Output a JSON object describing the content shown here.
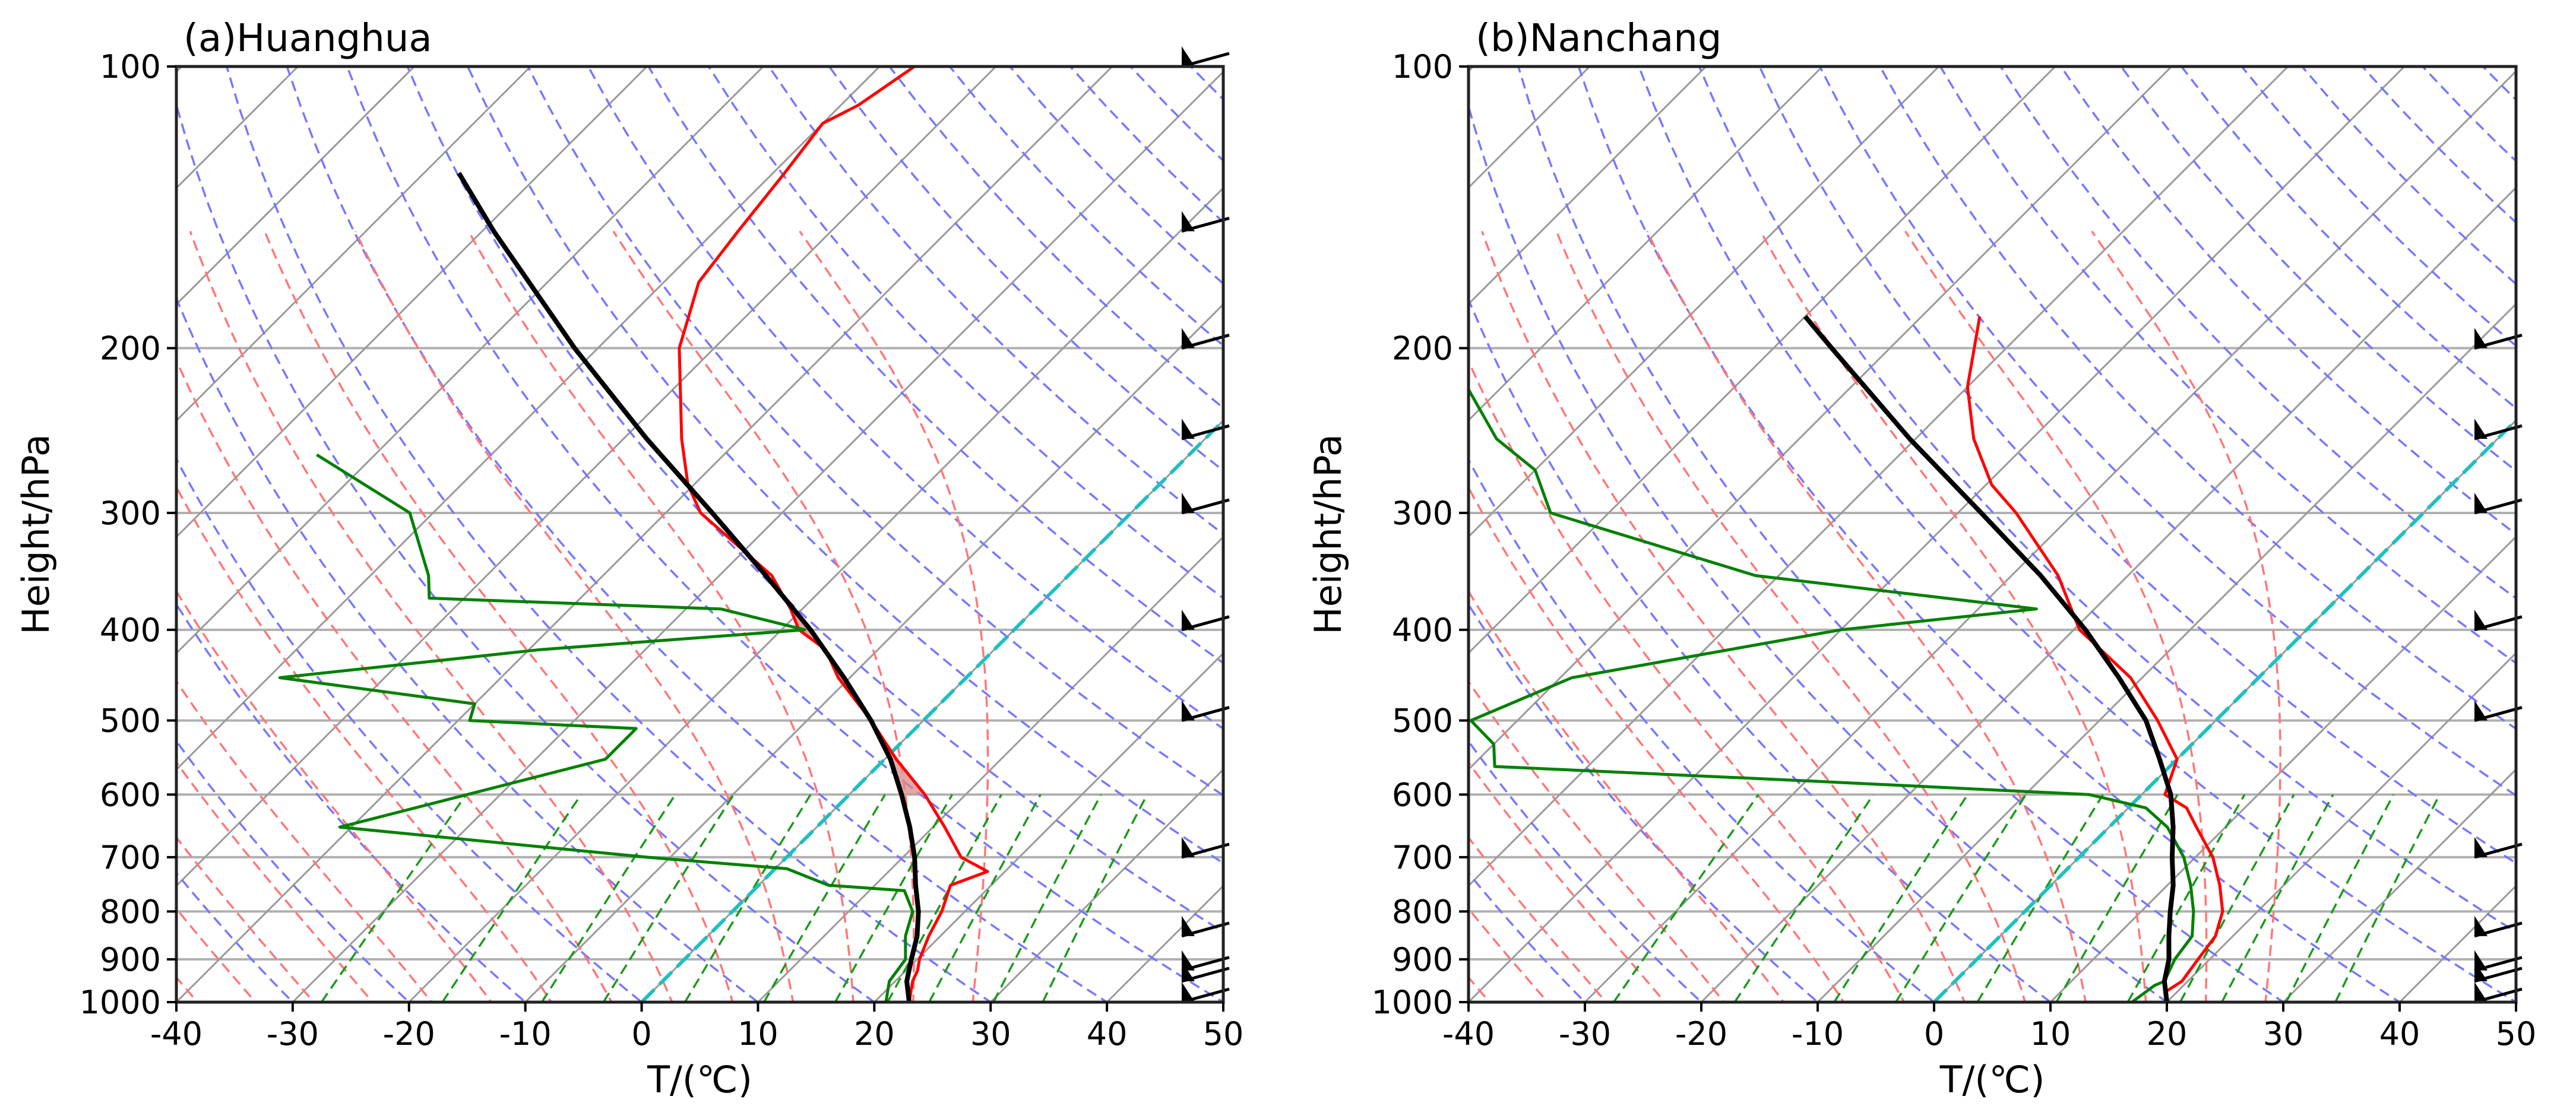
{
  "chart_data": [
    {
      "type": "line",
      "subtype": "skew-T log-P diagram",
      "panel": "a",
      "title": "(a)Huanghua",
      "xlabel": "T/(℃)",
      "ylabel": "Height/hPa",
      "xlim": [
        -40,
        50
      ],
      "ylim": [
        1000,
        100
      ],
      "x_ticks": [
        "-40",
        "-30",
        "-20",
        "-10",
        "0",
        "10",
        "20",
        "30",
        "40",
        "50"
      ],
      "y_ticks": [
        "100",
        "200",
        "300",
        "400",
        "500",
        "600",
        "700",
        "800",
        "900",
        "1000"
      ],
      "series": [
        {
          "name": "temperature",
          "color": "#ff0000",
          "points": [
            [
              1000,
              23.0
            ],
            [
              950,
              21.5
            ],
            [
              925,
              21.0
            ],
            [
              900,
              20.2
            ],
            [
              850,
              19.0
            ],
            [
              800,
              18.0
            ],
            [
              750,
              16.5
            ],
            [
              725,
              18.5
            ],
            [
              700,
              15.0
            ],
            [
              650,
              11.0
            ],
            [
              600,
              6.5
            ],
            [
              550,
              1.0
            ],
            [
              500,
              -4.5
            ],
            [
              450,
              -11.0
            ],
            [
              420,
              -14.5
            ],
            [
              400,
              -18.5
            ],
            [
              380,
              -21.0
            ],
            [
              350,
              -25.5
            ],
            [
              300,
              -37.0
            ],
            [
              280,
              -40.5
            ],
            [
              250,
              -45.0
            ],
            [
              200,
              -53.0
            ],
            [
              170,
              -57.0
            ],
            [
              150,
              -58.0
            ],
            [
              130,
              -59.0
            ],
            [
              115,
              -60.0
            ],
            [
              110,
              -58.5
            ],
            [
              100,
              -57.0
            ]
          ]
        },
        {
          "name": "dewpoint",
          "color": "#008000",
          "points": [
            [
              1000,
              21.0
            ],
            [
              950,
              19.5
            ],
            [
              900,
              19.0
            ],
            [
              850,
              17.0
            ],
            [
              800,
              15.5
            ],
            [
              760,
              13.0
            ],
            [
              750,
              6.0
            ],
            [
              720,
              1.0
            ],
            [
              700,
              -12.0
            ],
            [
              650,
              -41.0
            ],
            [
              550,
              -24.0
            ],
            [
              510,
              -24.0
            ],
            [
              500,
              -39.0
            ],
            [
              480,
              -40.0
            ],
            [
              450,
              -59.0
            ],
            [
              420,
              -39.0
            ],
            [
              400,
              -18.0
            ],
            [
              380,
              -27.0
            ],
            [
              370,
              -53.0
            ],
            [
              350,
              -55.0
            ],
            [
              300,
              -62.0
            ],
            [
              260,
              -75.0
            ]
          ]
        },
        {
          "name": "parcel",
          "color": "#000000",
          "points": [
            [
              1000,
              23.0
            ],
            [
              950,
              21.0
            ],
            [
              900,
              19.5
            ],
            [
              850,
              18.0
            ],
            [
              800,
              16.0
            ],
            [
              750,
              13.5
            ],
            [
              700,
              11.0
            ],
            [
              650,
              8.0
            ],
            [
              600,
              4.5
            ],
            [
              550,
              0.5
            ],
            [
              500,
              -4.5
            ],
            [
              450,
              -10.5
            ],
            [
              400,
              -17.5
            ],
            [
              350,
              -26.0
            ],
            [
              300,
              -36.0
            ],
            [
              250,
              -48.0
            ],
            [
              200,
              -62.0
            ],
            [
              150,
              -79.0
            ],
            [
              130,
              -87.0
            ]
          ]
        }
      ],
      "shaded_region": "CAPE between parcel curve and temperature, approx. 600–360 hPa",
      "wind_barbs_hPa": [
        1000,
        950,
        925,
        850,
        700,
        500,
        400,
        300,
        250,
        200,
        150,
        100
      ],
      "background_lines": [
        "isotherms",
        "dry adiabats",
        "moist adiabats",
        "mixing ratio lines",
        "0 ℃ isotherm"
      ]
    },
    {
      "type": "line",
      "subtype": "skew-T log-P diagram",
      "panel": "b",
      "title": "(b)Nanchang",
      "xlabel": "T/(℃)",
      "ylabel": "Height/hPa",
      "xlim": [
        -40,
        50
      ],
      "ylim": [
        1000,
        100
      ],
      "x_ticks": [
        "-40",
        "-30",
        "-20",
        "-10",
        "0",
        "10",
        "20",
        "30",
        "40",
        "50"
      ],
      "y_ticks": [
        "100",
        "200",
        "300",
        "400",
        "500",
        "600",
        "700",
        "800",
        "900",
        "1000"
      ],
      "series": [
        {
          "name": "temperature",
          "color": "#ff0000",
          "points": [
            [
              1000,
              20.0
            ],
            [
              975,
              19.0
            ],
            [
              950,
              19.5
            ],
            [
              900,
              19.0
            ],
            [
              850,
              18.5
            ],
            [
              800,
              17.0
            ],
            [
              750,
              14.5
            ],
            [
              700,
              11.5
            ],
            [
              650,
              7.5
            ],
            [
              620,
              5.0
            ],
            [
              600,
              2.0
            ],
            [
              550,
              0.0
            ],
            [
              500,
              -5.0
            ],
            [
              450,
              -11.0
            ],
            [
              400,
              -19.5
            ],
            [
              350,
              -26.0
            ],
            [
              300,
              -35.0
            ],
            [
              280,
              -39.5
            ],
            [
              250,
              -45.0
            ],
            [
              220,
              -50.0
            ],
            [
              185,
              -55.0
            ]
          ]
        },
        {
          "name": "dewpoint",
          "color": "#008000",
          "points": [
            [
              1000,
              17.0
            ],
            [
              960,
              17.5
            ],
            [
              950,
              18.0
            ],
            [
              900,
              17.0
            ],
            [
              850,
              16.5
            ],
            [
              800,
              14.5
            ],
            [
              750,
              12.0
            ],
            [
              700,
              9.0
            ],
            [
              650,
              5.0
            ],
            [
              620,
              1.5
            ],
            [
              600,
              -4.5
            ],
            [
              580,
              -30.0
            ],
            [
              560,
              -58.0
            ],
            [
              530,
              -60.0
            ],
            [
              500,
              -64.0
            ],
            [
              450,
              -59.0
            ],
            [
              400,
              -40.0
            ],
            [
              380,
              -25.0
            ],
            [
              350,
              -52.0
            ],
            [
              300,
              -75.0
            ],
            [
              270,
              -80.0
            ],
            [
              250,
              -86.0
            ],
            [
              220,
              -93.0
            ]
          ]
        },
        {
          "name": "parcel",
          "color": "#000000",
          "points": [
            [
              1000,
              20.0
            ],
            [
              950,
              18.0
            ],
            [
              900,
              16.5
            ],
            [
              850,
              14.5
            ],
            [
              800,
              12.5
            ],
            [
              750,
              10.5
            ],
            [
              700,
              8.0
            ],
            [
              650,
              5.5
            ],
            [
              600,
              2.5
            ],
            [
              550,
              -1.5
            ],
            [
              500,
              -6.0
            ],
            [
              450,
              -12.0
            ],
            [
              400,
              -19.0
            ],
            [
              350,
              -27.5
            ],
            [
              300,
              -38.0
            ],
            [
              250,
              -50.5
            ],
            [
              200,
              -65.0
            ],
            [
              185,
              -70.0
            ]
          ]
        }
      ],
      "wind_barbs_hPa": [
        1000,
        950,
        925,
        850,
        700,
        500,
        400,
        300,
        250,
        200
      ],
      "background_lines": [
        "isotherms",
        "dry adiabats",
        "moist adiabats",
        "mixing ratio lines",
        "0 ℃ isotherm"
      ]
    }
  ]
}
